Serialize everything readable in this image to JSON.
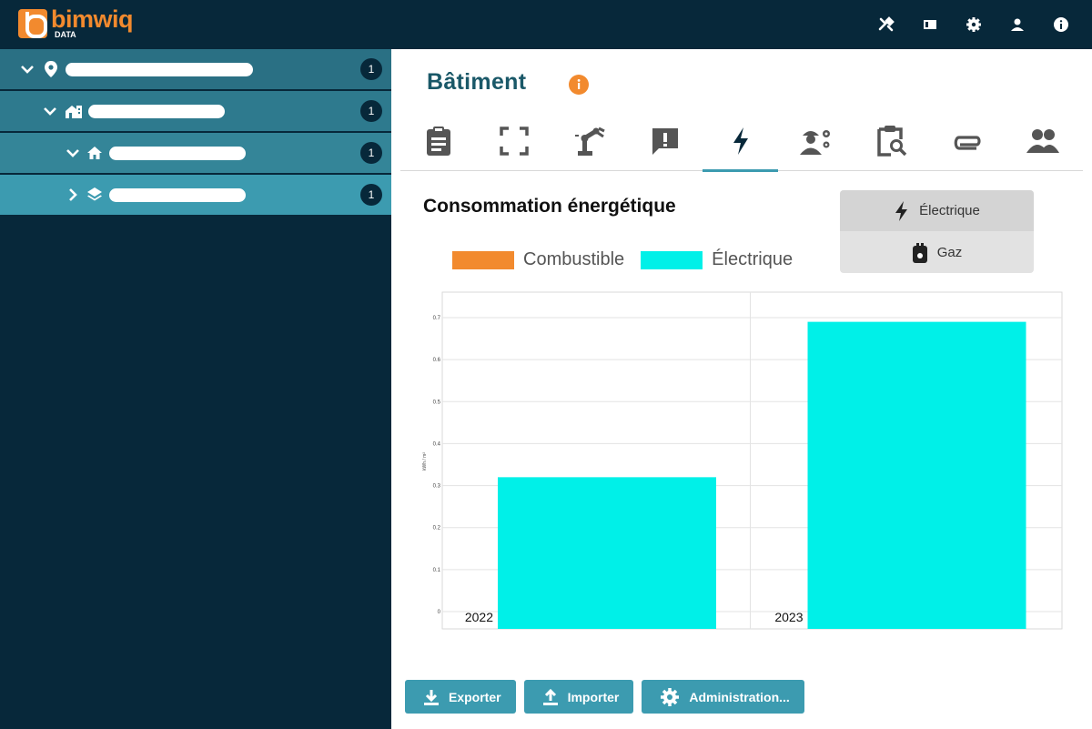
{
  "app": {
    "logo_word": "bimwiq",
    "logo_sub": "DATA"
  },
  "top_icons": [
    "tools-icon",
    "view-icon",
    "gear-icon",
    "user-icon",
    "info-icon"
  ],
  "sidebar": {
    "items": [
      {
        "icon": "location-pin-icon",
        "count": "1",
        "label": ""
      },
      {
        "icon": "building-icon",
        "count": "1",
        "label": ""
      },
      {
        "icon": "home-icon",
        "count": "1",
        "label": ""
      },
      {
        "icon": "layers-icon",
        "count": "1",
        "label": ""
      }
    ],
    "colors": [
      "#2a7084",
      "#2e7a8e",
      "#348598",
      "#3c9bb0"
    ]
  },
  "page": {
    "title": "Bâtiment"
  },
  "tabs": [
    "clipboard-icon",
    "fullscreen-icon",
    "robot-arm-icon",
    "alert-message-icon",
    "bolt-icon",
    "worker-gear-icon",
    "clipboard-search-icon",
    "paperclip-icon",
    "people-icon"
  ],
  "active_tab": 4,
  "section": {
    "title": "Consommation énergétique"
  },
  "legend": [
    {
      "label": "Combustible",
      "color": "#f28a2e"
    },
    {
      "label": "Électrique",
      "color": "#00f0e8"
    }
  ],
  "toggle": {
    "options": [
      {
        "label": "Électrique",
        "icon": "bolt-icon",
        "selected": true
      },
      {
        "label": "Gaz",
        "icon": "gas-meter-icon",
        "selected": false
      }
    ]
  },
  "chart_data": {
    "type": "bar",
    "categories": [
      "2022",
      "2023"
    ],
    "series": [
      {
        "name": "Combustible",
        "values": [
          0,
          0
        ],
        "color": "#f28a2e"
      },
      {
        "name": "Électrique",
        "values": [
          0.32,
          0.69
        ],
        "color": "#00f0e8"
      }
    ],
    "ylabel": "kWh / m²",
    "ylim": [
      0,
      0.75
    ],
    "yticks": [
      0,
      0.1,
      0.2,
      0.3,
      0.4,
      0.5,
      0.6,
      0.7
    ],
    "ytick_labels": [
      "0",
      "0.1",
      "0.2",
      "0.3",
      "0.4",
      "0.5",
      "0.6",
      "0.7"
    ],
    "grid": true
  },
  "buttons": [
    {
      "label": "Exporter",
      "icon": "download-icon"
    },
    {
      "label": "Importer",
      "icon": "upload-icon"
    },
    {
      "label": "Administration...",
      "icon": "gear-icon"
    }
  ]
}
